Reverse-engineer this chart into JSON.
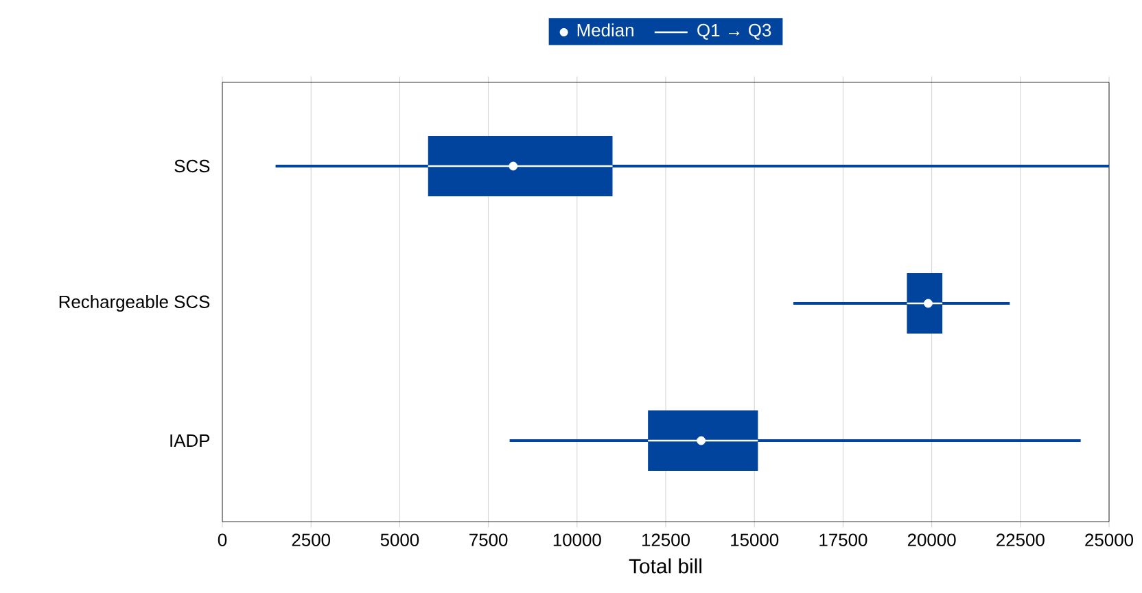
{
  "chart_data": {
    "type": "box",
    "orientation": "horizontal",
    "xlabel": "Total bill",
    "categories": [
      "SCS",
      "Rechargeable SCS",
      "IADP"
    ],
    "xlim": [
      0,
      25000
    ],
    "xticks": [
      0,
      2500,
      5000,
      7500,
      10000,
      12500,
      15000,
      17500,
      20000,
      22500,
      25000
    ],
    "grid": "x",
    "legend": "top",
    "annotations": [
      "Q1 → Q3"
    ],
    "series": [
      {
        "name": "Median",
        "type": "scatter",
        "color": "#ffffff",
        "values": [
          8200,
          19900,
          13500
        ],
        "errors": [
          [
            5800,
            11000
          ],
          [
            19300,
            20300
          ],
          [
            12000,
            15100
          ]
        ]
      },
      {
        "color": "#00449e",
        "boxes": [
          {
            "low": 1500,
            "q1": 5800,
            "median": 8200,
            "q3": 11000,
            "high": 25000
          },
          {
            "low": 16100,
            "q1": 19300,
            "median": 19900,
            "q3": 20300,
            "high": 22200
          },
          {
            "low": 8100,
            "q1": 12000,
            "median": 13500,
            "q3": 15100,
            "high": 24200
          }
        ]
      }
    ]
  }
}
